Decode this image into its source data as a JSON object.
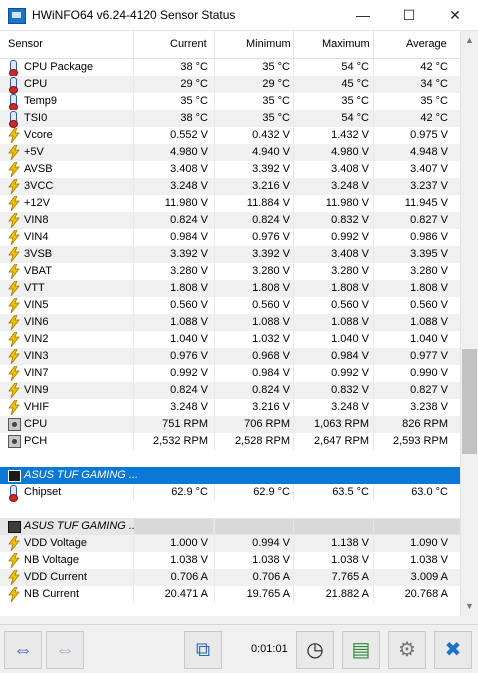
{
  "window": {
    "title": "HWiNFO64 v6.24-4120 Sensor Status",
    "minimize": "—",
    "maximize": "☐",
    "close": "✕"
  },
  "columns": [
    "Sensor",
    "Current",
    "Minimum",
    "Maximum",
    "Average"
  ],
  "rows": [
    {
      "icon": "thermo",
      "name": "CPU Package",
      "cur": "38 °C",
      "min": "35 °C",
      "max": "54 °C",
      "avg": "42 °C"
    },
    {
      "icon": "thermo",
      "name": "CPU",
      "cur": "29 °C",
      "min": "29 °C",
      "max": "45 °C",
      "avg": "34 °C"
    },
    {
      "icon": "thermo",
      "name": "Temp9",
      "cur": "35 °C",
      "min": "35 °C",
      "max": "35 °C",
      "avg": "35 °C"
    },
    {
      "icon": "thermo",
      "name": "TSI0",
      "cur": "38 °C",
      "min": "35 °C",
      "max": "54 °C",
      "avg": "42 °C"
    },
    {
      "icon": "bolt",
      "name": "Vcore",
      "cur": "0.552 V",
      "min": "0.432 V",
      "max": "1.432 V",
      "avg": "0.975 V"
    },
    {
      "icon": "bolt",
      "name": "+5V",
      "cur": "4.980 V",
      "min": "4.940 V",
      "max": "4.980 V",
      "avg": "4.948 V"
    },
    {
      "icon": "bolt",
      "name": "AVSB",
      "cur": "3.408 V",
      "min": "3.392 V",
      "max": "3.408 V",
      "avg": "3.407 V"
    },
    {
      "icon": "bolt",
      "name": "3VCC",
      "cur": "3.248 V",
      "min": "3.216 V",
      "max": "3.248 V",
      "avg": "3.237 V"
    },
    {
      "icon": "bolt",
      "name": "+12V",
      "cur": "11.980 V",
      "min": "11.884 V",
      "max": "11.980 V",
      "avg": "11.945 V"
    },
    {
      "icon": "bolt",
      "name": "VIN8",
      "cur": "0.824 V",
      "min": "0.824 V",
      "max": "0.832 V",
      "avg": "0.827 V"
    },
    {
      "icon": "bolt",
      "name": "VIN4",
      "cur": "0.984 V",
      "min": "0.976 V",
      "max": "0.992 V",
      "avg": "0.986 V"
    },
    {
      "icon": "bolt",
      "name": "3VSB",
      "cur": "3.392 V",
      "min": "3.392 V",
      "max": "3.408 V",
      "avg": "3.395 V"
    },
    {
      "icon": "bolt",
      "name": "VBAT",
      "cur": "3.280 V",
      "min": "3.280 V",
      "max": "3.280 V",
      "avg": "3.280 V"
    },
    {
      "icon": "bolt",
      "name": "VTT",
      "cur": "1.808 V",
      "min": "1.808 V",
      "max": "1.808 V",
      "avg": "1.808 V"
    },
    {
      "icon": "bolt",
      "name": "VIN5",
      "cur": "0.560 V",
      "min": "0.560 V",
      "max": "0.560 V",
      "avg": "0.560 V"
    },
    {
      "icon": "bolt",
      "name": "VIN6",
      "cur": "1.088 V",
      "min": "1.088 V",
      "max": "1.088 V",
      "avg": "1.088 V"
    },
    {
      "icon": "bolt",
      "name": "VIN2",
      "cur": "1.040 V",
      "min": "1.032 V",
      "max": "1.040 V",
      "avg": "1.040 V"
    },
    {
      "icon": "bolt",
      "name": "VIN3",
      "cur": "0.976 V",
      "min": "0.968 V",
      "max": "0.984 V",
      "avg": "0.977 V"
    },
    {
      "icon": "bolt",
      "name": "VIN7",
      "cur": "0.992 V",
      "min": "0.984 V",
      "max": "0.992 V",
      "avg": "0.990 V"
    },
    {
      "icon": "bolt",
      "name": "VIN9",
      "cur": "0.824 V",
      "min": "0.824 V",
      "max": "0.832 V",
      "avg": "0.827 V"
    },
    {
      "icon": "bolt",
      "name": "VHIF",
      "cur": "3.248 V",
      "min": "3.216 V",
      "max": "3.248 V",
      "avg": "3.238 V"
    },
    {
      "icon": "fan",
      "name": "CPU",
      "cur": "751 RPM",
      "min": "706 RPM",
      "max": "1,063 RPM",
      "avg": "826 RPM"
    },
    {
      "icon": "fan",
      "name": "PCH",
      "cur": "2,532 RPM",
      "min": "2,528 RPM",
      "max": "2,647 RPM",
      "avg": "2,593 RPM"
    }
  ],
  "groups": {
    "g1": {
      "title": "ASUS TUF GAMING ...",
      "rows": [
        {
          "icon": "thermo",
          "name": "Chipset",
          "cur": "62.9 °C",
          "min": "62.9 °C",
          "max": "63.5 °C",
          "avg": "63.0 °C"
        }
      ]
    },
    "g2": {
      "title": "ASUS TUF GAMING ...",
      "rows": [
        {
          "icon": "bolt",
          "name": "VDD Voltage",
          "cur": "1.000 V",
          "min": "0.994 V",
          "max": "1.138 V",
          "avg": "1.090 V"
        },
        {
          "icon": "bolt",
          "name": "NB Voltage",
          "cur": "1.038 V",
          "min": "1.038 V",
          "max": "1.038 V",
          "avg": "1.038 V"
        },
        {
          "icon": "bolt",
          "name": "VDD Current",
          "cur": "0.706 A",
          "min": "0.706 A",
          "max": "7.765 A",
          "avg": "3.009 A"
        },
        {
          "icon": "bolt",
          "name": "NB Current",
          "cur": "20.471 A",
          "min": "19.765 A",
          "max": "21.882 A",
          "avg": "20.768 A"
        }
      ]
    }
  },
  "toolbar": {
    "timer": "0:01:01"
  }
}
